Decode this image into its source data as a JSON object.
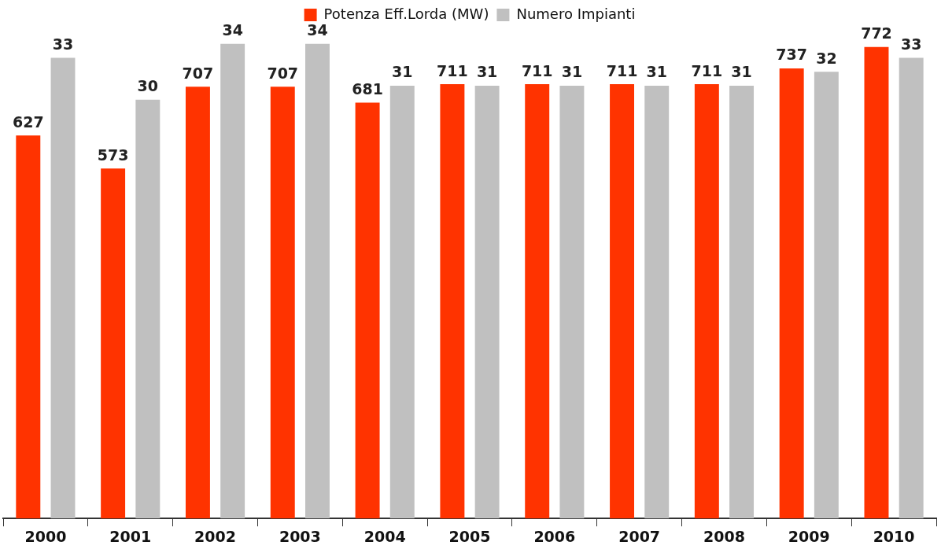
{
  "chart_data": {
    "type": "bar",
    "categories": [
      "2000",
      "2001",
      "2002",
      "2003",
      "2004",
      "2005",
      "2006",
      "2007",
      "2008",
      "2009",
      "2010"
    ],
    "series": [
      {
        "name": "Potenza Eff.Lorda (MW)",
        "color": "#ff3300",
        "values": [
          627,
          573,
          707,
          707,
          681,
          711,
          711,
          711,
          711,
          737,
          772
        ]
      },
      {
        "name": "Numero Impianti",
        "color": "#c0c0c0",
        "axis": "y2",
        "values": [
          33,
          30,
          34,
          34,
          31,
          31,
          31,
          31,
          31,
          32,
          33
        ]
      }
    ],
    "tick_labels": "x",
    "data_labels": true,
    "legend": "top",
    "grid": false
  }
}
